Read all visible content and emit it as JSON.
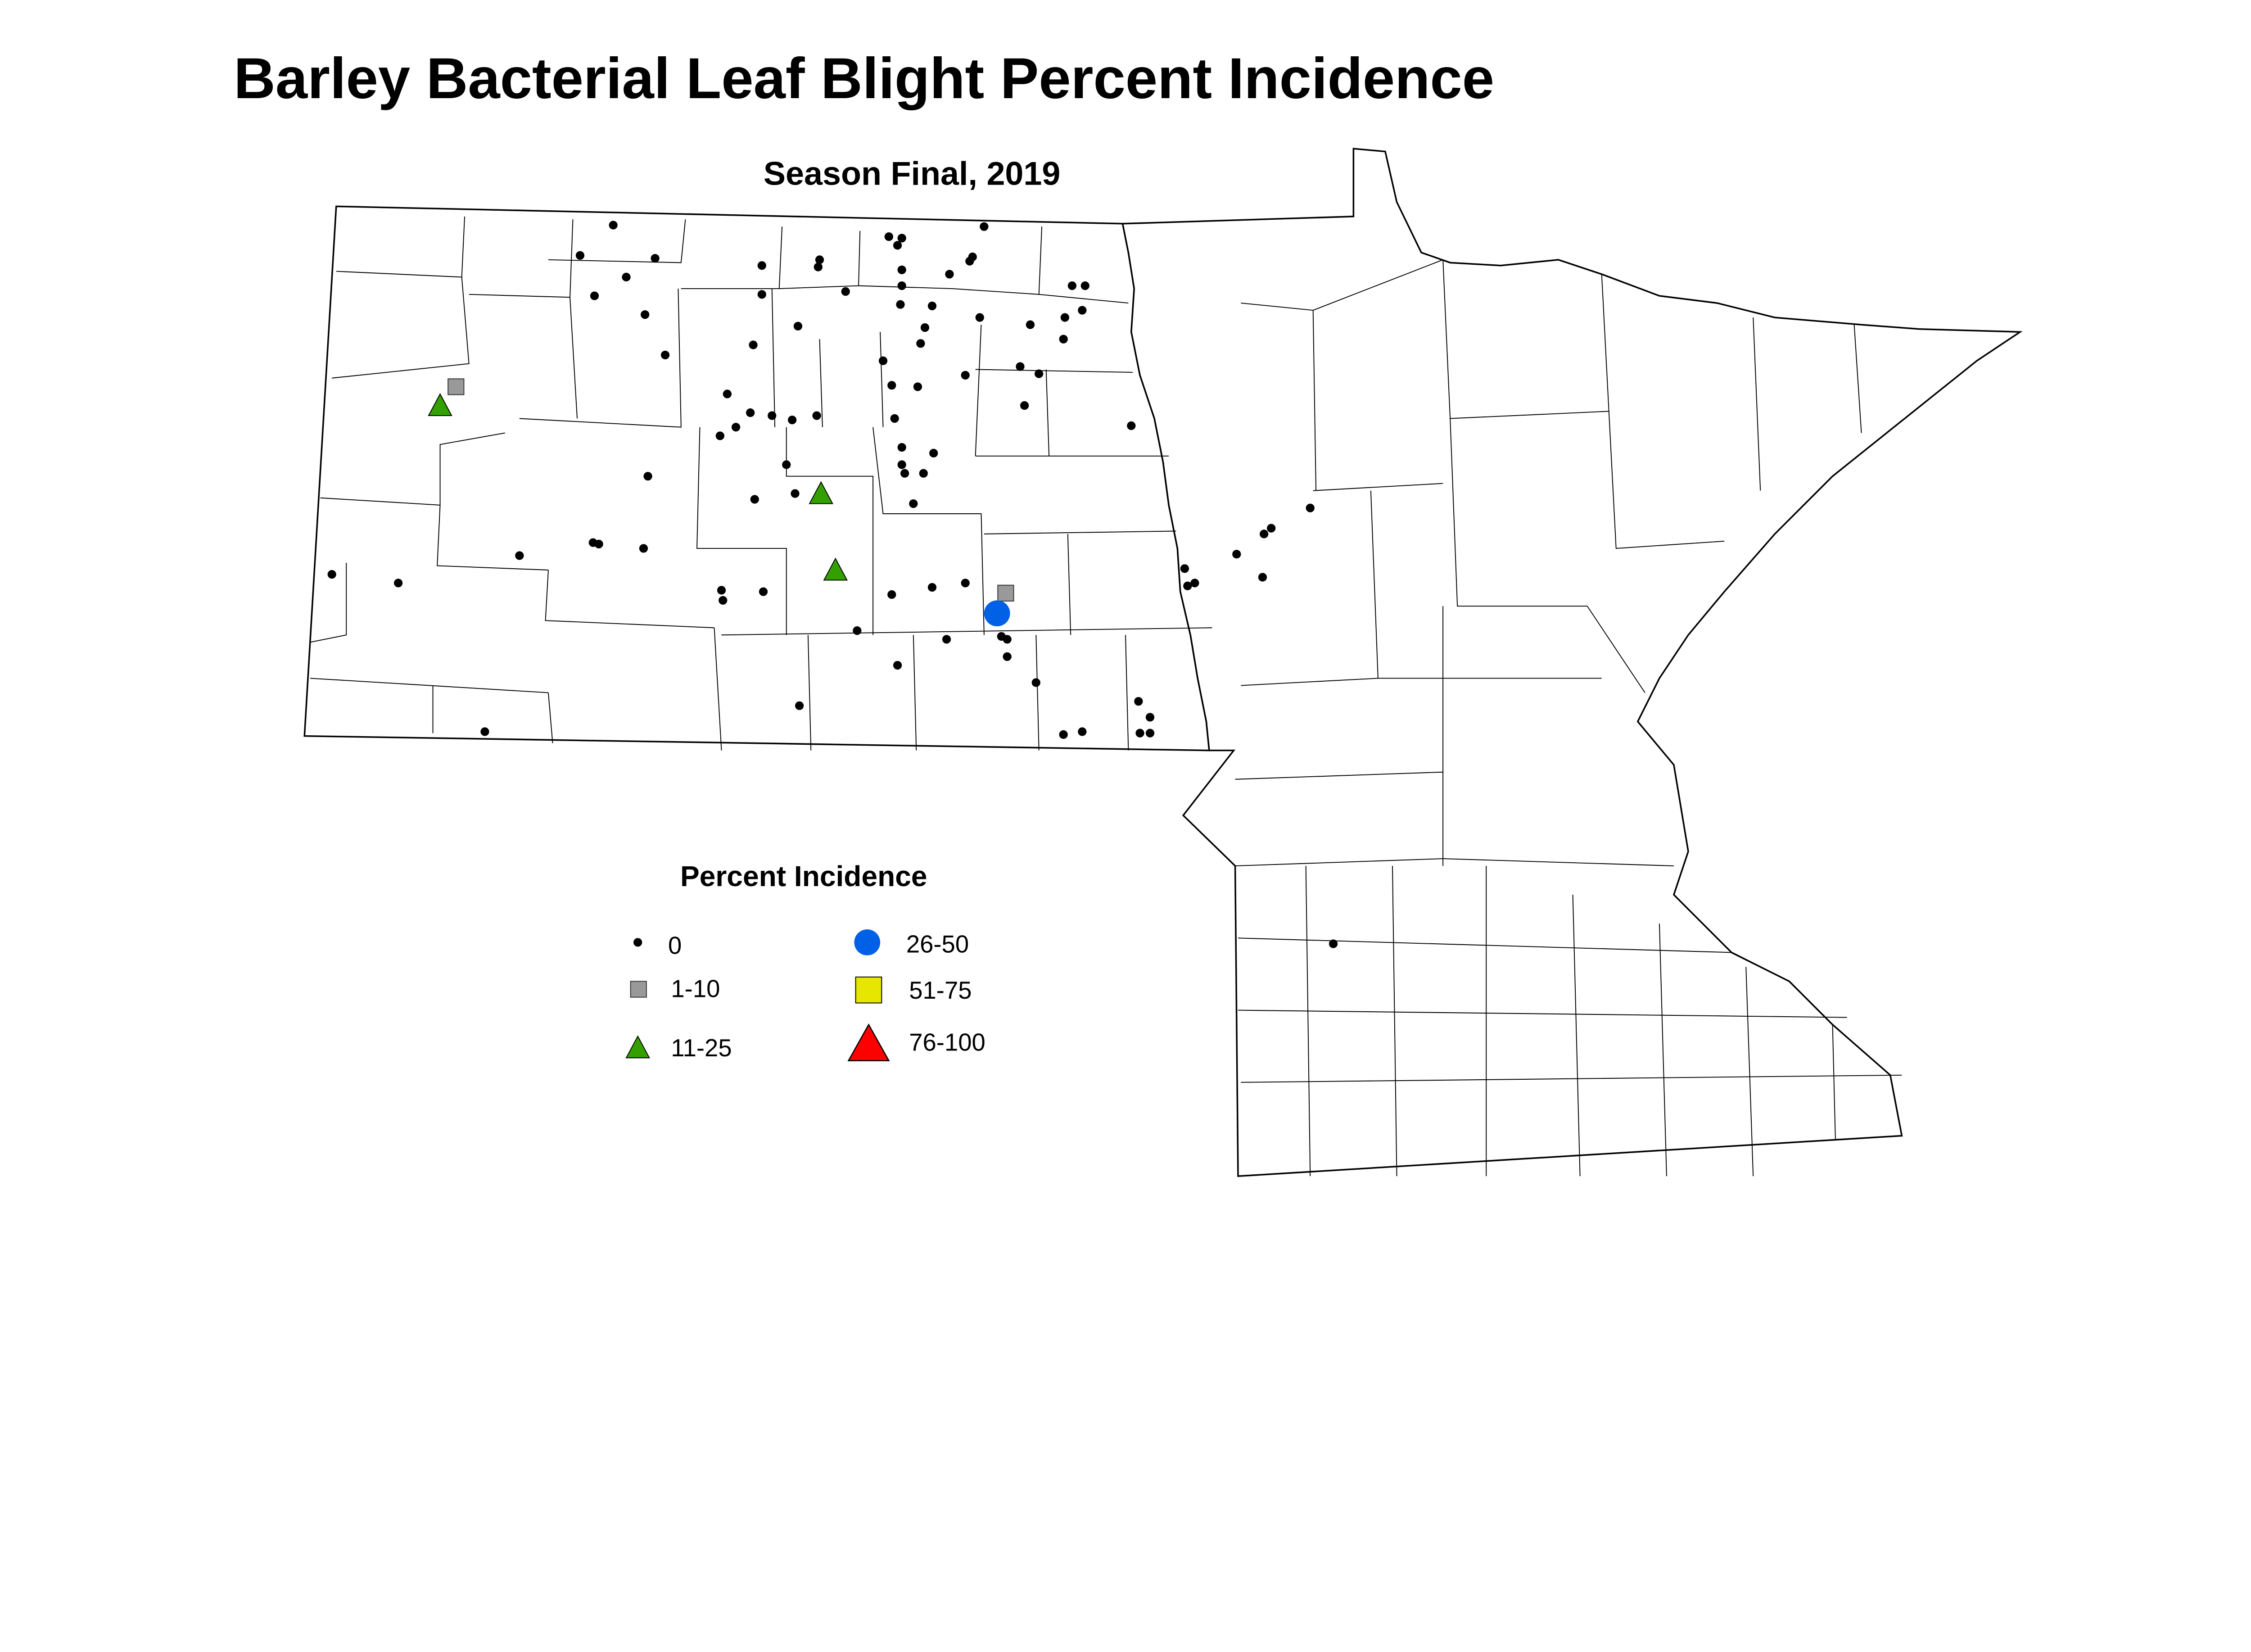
{
  "title": "Barley Bacterial Leaf Blight Percent Incidence",
  "subtitle": "Season Final, 2019",
  "legend": {
    "title": "Percent Incidence",
    "items": [
      {
        "key": "c0",
        "label": "0",
        "symbol": "dot",
        "color": "#000000"
      },
      {
        "key": "c1",
        "label": "1-10",
        "symbol": "square",
        "color": "#999999"
      },
      {
        "key": "c2",
        "label": "11-25",
        "symbol": "triangle",
        "color": "#33A000"
      },
      {
        "key": "c3",
        "label": "26-50",
        "symbol": "circle",
        "color": "#0060E6"
      },
      {
        "key": "c4",
        "label": "51-75",
        "symbol": "square",
        "color": "#E6E600"
      },
      {
        "key": "c5",
        "label": "76-100",
        "symbol": "triangle",
        "color": "#FF0000"
      }
    ]
  }
}
